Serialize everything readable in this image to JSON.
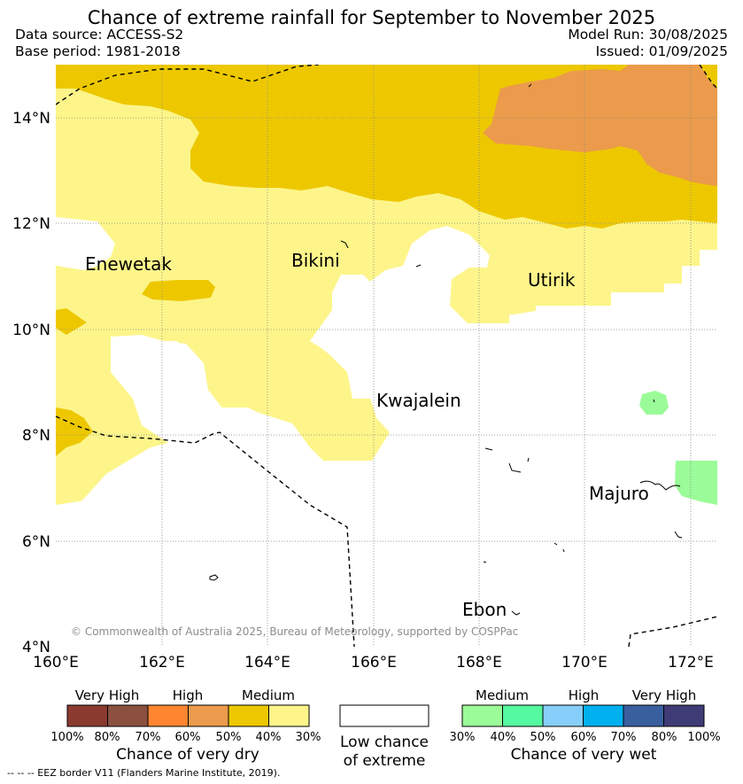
{
  "header": {
    "title": "Chance of extreme rainfall for September to November 2025",
    "data_source": "Data source: ACCESS-S2",
    "base_period": "Base period: 1981-2018",
    "model_run": "Model Run: 30/08/2025",
    "issued": "Issued: 01/09/2025"
  },
  "map": {
    "lat_labels": [
      "14°N",
      "12°N",
      "10°N",
      "8°N",
      "6°N",
      "4°N"
    ],
    "lon_labels": [
      "160°E",
      "162°E",
      "164°E",
      "166°E",
      "168°E",
      "170°E",
      "172°E"
    ],
    "places": {
      "enewetak": "Enewetak",
      "bikini": "Bikini",
      "utirik": "Utirik",
      "kwajalein": "Kwajalein",
      "majuro": "Majuro",
      "ebon": "Ebon"
    },
    "copyright": "© Commonwealth of Australia 2025, Bureau of Meteorology, supported by COSPPac"
  },
  "legend": {
    "dry": {
      "levels": [
        "Very High",
        "High",
        "Medium"
      ],
      "percents": [
        "100%",
        "80%",
        "70%",
        "60%",
        "50%",
        "40%",
        "30%"
      ],
      "caption": "Chance of very dry",
      "colors": [
        "#8b3a2f",
        "#8b5040",
        "#ff8530",
        "#eb9b4b",
        "#edc800",
        "#fdf58a"
      ]
    },
    "none": {
      "line1": "Low chance",
      "line2": "of extreme",
      "color": "#ffffff"
    },
    "wet": {
      "levels": [
        "Medium",
        "High",
        "Very High"
      ],
      "percents": [
        "30%",
        "40%",
        "50%",
        "60%",
        "70%",
        "80%",
        "100%"
      ],
      "caption": "Chance of very wet",
      "colors": [
        "#9bfb98",
        "#55f99f",
        "#87cefa",
        "#00b0ef",
        "#3a5f9f",
        "#3f3b77"
      ]
    }
  },
  "footer": {
    "eez_note": "--  --  -- EEZ border V11 (Flanders Marine Institute, 2019)."
  }
}
